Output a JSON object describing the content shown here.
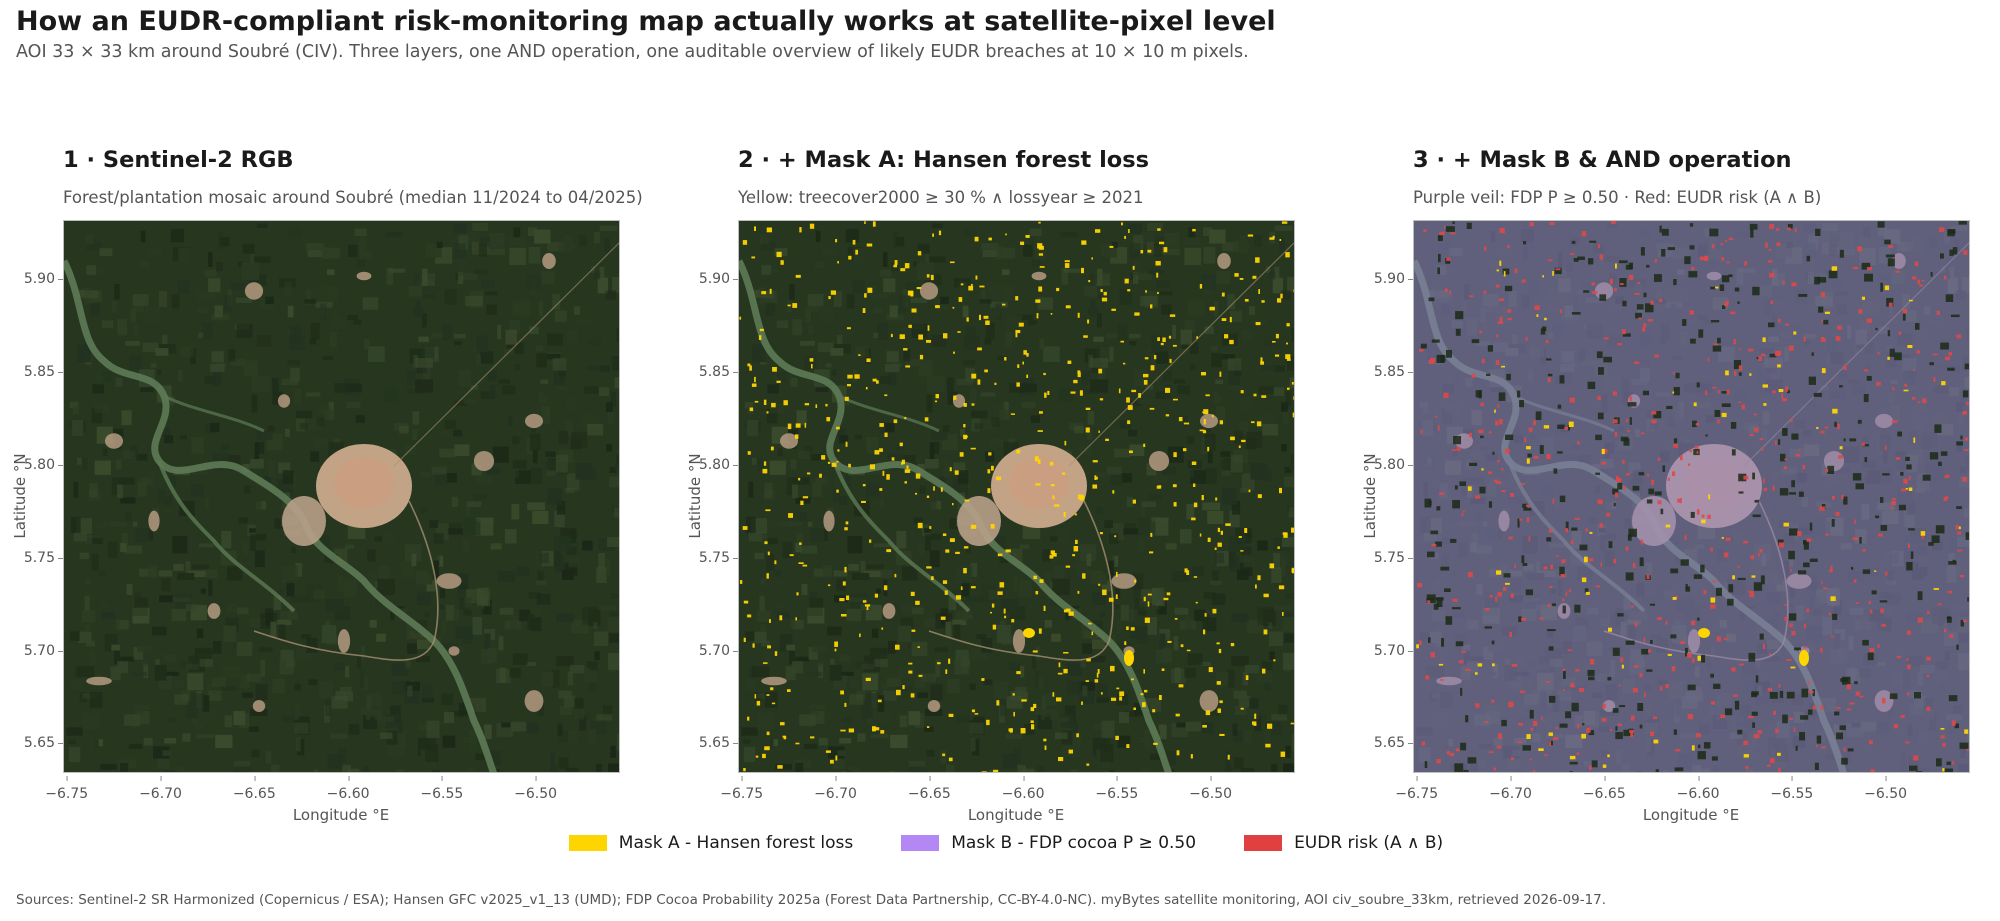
{
  "header": {
    "title": "How an EUDR-compliant risk-monitoring map actually works at satellite-pixel level",
    "subtitle": "AOI 33 × 33 km around Soubré (CIV). Three layers, one AND operation, one auditable overview of likely EUDR breaches at 10 × 10 m pixels."
  },
  "axes": {
    "xlabel": "Longitude °E",
    "ylabel": "Latitude °N",
    "x_ticks": [
      "−6.75",
      "−6.70",
      "−6.65",
      "−6.60",
      "−6.55",
      "−6.50"
    ],
    "x_tick_values": [
      -6.75,
      -6.7,
      -6.65,
      -6.6,
      -6.55,
      -6.5
    ],
    "y_ticks": [
      "5.90",
      "5.85",
      "5.80",
      "5.75",
      "5.70",
      "5.65"
    ],
    "y_tick_values": [
      5.9,
      5.85,
      5.8,
      5.75,
      5.7,
      5.65
    ],
    "xlim": [
      -6.752,
      -6.455
    ],
    "ylim": [
      5.634,
      5.932
    ]
  },
  "panels": [
    {
      "title": "1 · Sentinel-2 RGB",
      "subtitle": "Forest/plantation mosaic around Soubré (median 11/2024 to 04/2025)",
      "layer": "rgb"
    },
    {
      "title": "2 · + Mask A: Hansen forest loss",
      "subtitle": "Yellow: treecover2000 ≥ 30 %  ∧  lossyear ≥ 2021",
      "layer": "maskA"
    },
    {
      "title": "3 · + Mask B & AND operation",
      "subtitle": "Purple veil: FDP P ≥ 0.50  ·  Red: EUDR risk (A ∧ B)",
      "layer": "maskAB"
    }
  ],
  "legend": [
    {
      "label": "Mask A - Hansen forest loss",
      "color": "#ffd500"
    },
    {
      "label": "Mask B - FDP cocoa P ≥ 0.50",
      "color": "#b388f5"
    },
    {
      "label": "EUDR risk (A ∧ B)",
      "color": "#e04040"
    }
  ],
  "colors": {
    "forest": "#26361f",
    "urban": "#c3a385",
    "river": "#5e7a55",
    "loss": "#ffd500",
    "veil": "#8f84c8",
    "risk": "#e04848"
  },
  "sources": "Sources: Sentinel-2 SR Harmonized (Copernicus / ESA);  Hansen GFC v2025_v1_13 (UMD);  FDP Cocoa Probability 2025a (Forest Data Partnership, CC-BY-4.0-NC).  myBytes satellite monitoring, AOI civ_soubre_33km, retrieved 2026-09-17."
}
